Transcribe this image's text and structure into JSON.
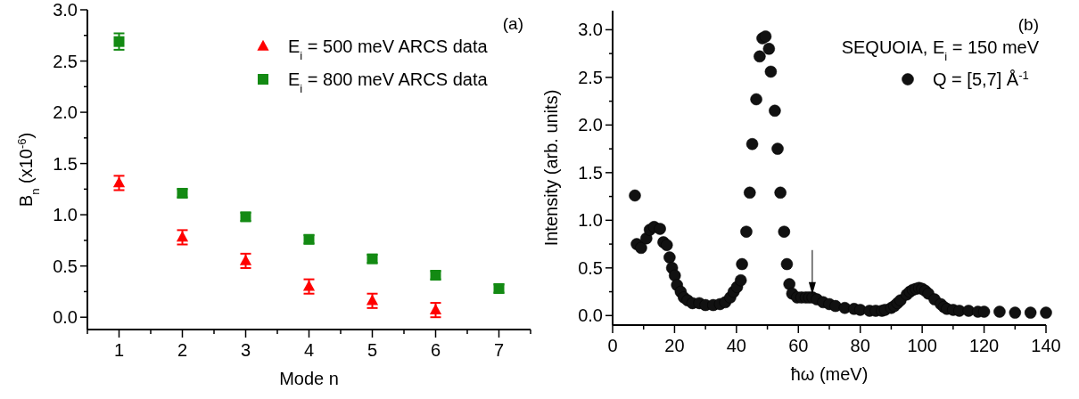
{
  "chart_data": [
    {
      "type": "scatter",
      "xlabel": "Mode n",
      "ylabel": "B$_{n}$ (x10$^{-6}$)",
      "annotations": [
        "(a)"
      ],
      "xlim": [
        0.5,
        7.5
      ],
      "xticks": [
        {
          "value": 0.5,
          "label": null
        },
        1,
        {
          "value": 1.5,
          "label": null
        },
        2,
        {
          "value": 2.5,
          "label": null
        },
        3,
        {
          "value": 3.5,
          "label": null
        },
        4,
        {
          "value": 4.5,
          "label": null
        },
        5,
        {
          "value": 5.5,
          "label": null
        },
        6,
        {
          "value": 6.5,
          "label": null
        },
        7,
        {
          "value": 7.5,
          "label": null
        }
      ],
      "ylim": [
        -0.12,
        3.0
      ],
      "yticks": [
        {
          "value": 0,
          "label": "0.0"
        },
        {
          "value": 0.25,
          "label": null
        },
        {
          "value": 0.5,
          "label": "0.5"
        },
        {
          "value": 0.75,
          "label": null
        },
        {
          "value": 1,
          "label": "1.0"
        },
        {
          "value": 1.25,
          "label": null
        },
        {
          "value": 1.5,
          "label": "1.5"
        },
        {
          "value": 1.75,
          "label": null
        },
        {
          "value": 2,
          "label": "2.0"
        },
        {
          "value": 2.25,
          "label": null
        },
        {
          "value": 2.5,
          "label": "2.5"
        },
        {
          "value": 2.75,
          "label": null
        },
        {
          "value": 3,
          "label": "3.0"
        }
      ],
      "legend": "top right",
      "grid": false,
      "series": [
        {
          "name": "E$_{i}$ = 500 meV ARCS data",
          "color": "#ff0000",
          "marker": "triangle",
          "x": [
            1,
            2,
            3,
            4,
            5,
            6
          ],
          "values": [
            1.31,
            0.78,
            0.55,
            0.3,
            0.16,
            0.07
          ],
          "errors": [
            0.07,
            0.07,
            0.07,
            0.07,
            0.07,
            0.07
          ]
        },
        {
          "name": "E$_{i}$ = 800 meV ARCS data",
          "color": "#138a13",
          "marker": "square",
          "x": [
            1,
            2,
            3,
            4,
            5,
            6,
            7
          ],
          "values": [
            2.69,
            1.21,
            0.98,
            0.76,
            0.57,
            0.41,
            0.28
          ],
          "errors": [
            0.08,
            0.04,
            0.04,
            0.04,
            0.04,
            0.04,
            0.04
          ]
        }
      ]
    },
    {
      "type": "scatter",
      "xlabel": "ħω (meV)",
      "ylabel": "Intensity (arb. units)",
      "legend_title": "SEQUOIA, E$_{i}$ = 150 meV",
      "annotations": [
        "(b)"
      ],
      "xlim": [
        0,
        140
      ],
      "xticks": [
        0,
        {
          "value": 10,
          "label": null
        },
        20,
        {
          "value": 30,
          "label": null
        },
        40,
        {
          "value": 50,
          "label": null
        },
        60,
        {
          "value": 70,
          "label": null
        },
        80,
        {
          "value": 90,
          "label": null
        },
        100,
        {
          "value": 110,
          "label": null
        },
        120,
        {
          "value": 130,
          "label": null
        },
        140
      ],
      "ylim": [
        -0.1,
        3.2
      ],
      "yticks": [
        {
          "value": 0,
          "label": "0.0"
        },
        {
          "value": 0.25,
          "label": null
        },
        {
          "value": 0.5,
          "label": "0.5"
        },
        {
          "value": 0.75,
          "label": null
        },
        {
          "value": 1,
          "label": "1.0"
        },
        {
          "value": 1.25,
          "label": null
        },
        {
          "value": 1.5,
          "label": "1.5"
        },
        {
          "value": 1.75,
          "label": null
        },
        {
          "value": 2,
          "label": "2.0"
        },
        {
          "value": 2.25,
          "label": null
        },
        {
          "value": 2.5,
          "label": "2.5"
        },
        {
          "value": 2.75,
          "label": null
        },
        {
          "value": 3,
          "label": "3.0"
        }
      ],
      "legend": "top right",
      "grid": false,
      "series": [
        {
          "name": "Q = [5,7] Å$^{-1}$",
          "color": "#111111",
          "marker": "circle",
          "x": [
            7.2,
            7.8,
            9.2,
            10.9,
            12,
            13.4,
            15.3,
            16.4,
            17.5,
            18.4,
            19.2,
            20.1,
            20.8,
            22,
            23,
            24.2,
            25.8,
            28,
            30,
            32.5,
            34.7,
            36.4,
            38,
            39.1,
            40.2,
            41.4,
            41.8,
            43.2,
            44.3,
            45.1,
            46.4,
            47.5,
            48.4,
            49.4,
            50.5,
            51.1,
            52.4,
            53.3,
            54.2,
            55.4,
            56.3,
            57.1,
            58,
            59.6,
            61,
            62.4,
            63.5,
            64.6,
            66,
            68,
            70,
            72,
            75,
            78,
            80,
            83,
            85,
            87,
            88,
            90,
            91,
            92,
            93,
            95,
            96,
            97,
            98,
            99,
            100,
            101,
            102,
            104,
            106,
            107,
            108,
            110,
            112,
            115,
            118,
            120,
            125,
            130,
            135,
            140
          ],
          "values": [
            1.26,
            0.75,
            0.71,
            0.81,
            0.9,
            0.93,
            0.91,
            0.77,
            0.74,
            0.61,
            0.5,
            0.42,
            0.32,
            0.25,
            0.19,
            0.16,
            0.13,
            0.13,
            0.11,
            0.11,
            0.12,
            0.14,
            0.19,
            0.25,
            0.3,
            0.37,
            0.54,
            0.88,
            1.29,
            1.8,
            2.27,
            2.72,
            2.91,
            2.93,
            2.8,
            2.56,
            2.15,
            1.75,
            1.29,
            0.88,
            0.54,
            0.33,
            0.23,
            0.19,
            0.19,
            0.19,
            0.19,
            0.19,
            0.17,
            0.14,
            0.12,
            0.1,
            0.08,
            0.07,
            0.06,
            0.05,
            0.05,
            0.05,
            0.06,
            0.08,
            0.1,
            0.13,
            0.16,
            0.22,
            0.25,
            0.27,
            0.28,
            0.29,
            0.28,
            0.26,
            0.23,
            0.17,
            0.12,
            0.09,
            0.07,
            0.06,
            0.05,
            0.05,
            0.04,
            0.04,
            0.04,
            0.03,
            0.03,
            0.03
          ]
        }
      ]
    }
  ]
}
